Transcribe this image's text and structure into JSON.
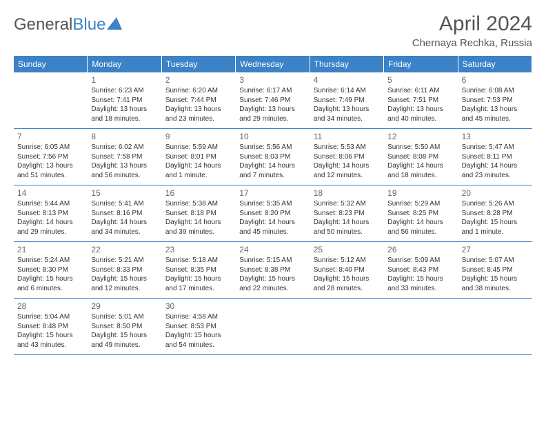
{
  "logo": {
    "text_gray": "General",
    "text_blue": "Blue"
  },
  "header": {
    "month_title": "April 2024",
    "location": "Chernaya Rechka, Russia"
  },
  "weekdays": [
    "Sunday",
    "Monday",
    "Tuesday",
    "Wednesday",
    "Thursday",
    "Friday",
    "Saturday"
  ],
  "colors": {
    "header_bg": "#3b82c7",
    "header_text": "#ffffff",
    "border": "#3b82c7",
    "text": "#333333",
    "title_text": "#555555"
  },
  "rows": [
    [
      {
        "blank": true
      },
      {
        "day": "1",
        "sunrise": "Sunrise: 6:23 AM",
        "sunset": "Sunset: 7:41 PM",
        "daylight": "Daylight: 13 hours and 18 minutes."
      },
      {
        "day": "2",
        "sunrise": "Sunrise: 6:20 AM",
        "sunset": "Sunset: 7:44 PM",
        "daylight": "Daylight: 13 hours and 23 minutes."
      },
      {
        "day": "3",
        "sunrise": "Sunrise: 6:17 AM",
        "sunset": "Sunset: 7:46 PM",
        "daylight": "Daylight: 13 hours and 29 minutes."
      },
      {
        "day": "4",
        "sunrise": "Sunrise: 6:14 AM",
        "sunset": "Sunset: 7:49 PM",
        "daylight": "Daylight: 13 hours and 34 minutes."
      },
      {
        "day": "5",
        "sunrise": "Sunrise: 6:11 AM",
        "sunset": "Sunset: 7:51 PM",
        "daylight": "Daylight: 13 hours and 40 minutes."
      },
      {
        "day": "6",
        "sunrise": "Sunrise: 6:08 AM",
        "sunset": "Sunset: 7:53 PM",
        "daylight": "Daylight: 13 hours and 45 minutes."
      }
    ],
    [
      {
        "day": "7",
        "sunrise": "Sunrise: 6:05 AM",
        "sunset": "Sunset: 7:56 PM",
        "daylight": "Daylight: 13 hours and 51 minutes."
      },
      {
        "day": "8",
        "sunrise": "Sunrise: 6:02 AM",
        "sunset": "Sunset: 7:58 PM",
        "daylight": "Daylight: 13 hours and 56 minutes."
      },
      {
        "day": "9",
        "sunrise": "Sunrise: 5:59 AM",
        "sunset": "Sunset: 8:01 PM",
        "daylight": "Daylight: 14 hours and 1 minute."
      },
      {
        "day": "10",
        "sunrise": "Sunrise: 5:56 AM",
        "sunset": "Sunset: 8:03 PM",
        "daylight": "Daylight: 14 hours and 7 minutes."
      },
      {
        "day": "11",
        "sunrise": "Sunrise: 5:53 AM",
        "sunset": "Sunset: 8:06 PM",
        "daylight": "Daylight: 14 hours and 12 minutes."
      },
      {
        "day": "12",
        "sunrise": "Sunrise: 5:50 AM",
        "sunset": "Sunset: 8:08 PM",
        "daylight": "Daylight: 14 hours and 18 minutes."
      },
      {
        "day": "13",
        "sunrise": "Sunrise: 5:47 AM",
        "sunset": "Sunset: 8:11 PM",
        "daylight": "Daylight: 14 hours and 23 minutes."
      }
    ],
    [
      {
        "day": "14",
        "sunrise": "Sunrise: 5:44 AM",
        "sunset": "Sunset: 8:13 PM",
        "daylight": "Daylight: 14 hours and 29 minutes."
      },
      {
        "day": "15",
        "sunrise": "Sunrise: 5:41 AM",
        "sunset": "Sunset: 8:16 PM",
        "daylight": "Daylight: 14 hours and 34 minutes."
      },
      {
        "day": "16",
        "sunrise": "Sunrise: 5:38 AM",
        "sunset": "Sunset: 8:18 PM",
        "daylight": "Daylight: 14 hours and 39 minutes."
      },
      {
        "day": "17",
        "sunrise": "Sunrise: 5:35 AM",
        "sunset": "Sunset: 8:20 PM",
        "daylight": "Daylight: 14 hours and 45 minutes."
      },
      {
        "day": "18",
        "sunrise": "Sunrise: 5:32 AM",
        "sunset": "Sunset: 8:23 PM",
        "daylight": "Daylight: 14 hours and 50 minutes."
      },
      {
        "day": "19",
        "sunrise": "Sunrise: 5:29 AM",
        "sunset": "Sunset: 8:25 PM",
        "daylight": "Daylight: 14 hours and 56 minutes."
      },
      {
        "day": "20",
        "sunrise": "Sunrise: 5:26 AM",
        "sunset": "Sunset: 8:28 PM",
        "daylight": "Daylight: 15 hours and 1 minute."
      }
    ],
    [
      {
        "day": "21",
        "sunrise": "Sunrise: 5:24 AM",
        "sunset": "Sunset: 8:30 PM",
        "daylight": "Daylight: 15 hours and 6 minutes."
      },
      {
        "day": "22",
        "sunrise": "Sunrise: 5:21 AM",
        "sunset": "Sunset: 8:33 PM",
        "daylight": "Daylight: 15 hours and 12 minutes."
      },
      {
        "day": "23",
        "sunrise": "Sunrise: 5:18 AM",
        "sunset": "Sunset: 8:35 PM",
        "daylight": "Daylight: 15 hours and 17 minutes."
      },
      {
        "day": "24",
        "sunrise": "Sunrise: 5:15 AM",
        "sunset": "Sunset: 8:38 PM",
        "daylight": "Daylight: 15 hours and 22 minutes."
      },
      {
        "day": "25",
        "sunrise": "Sunrise: 5:12 AM",
        "sunset": "Sunset: 8:40 PM",
        "daylight": "Daylight: 15 hours and 28 minutes."
      },
      {
        "day": "26",
        "sunrise": "Sunrise: 5:09 AM",
        "sunset": "Sunset: 8:43 PM",
        "daylight": "Daylight: 15 hours and 33 minutes."
      },
      {
        "day": "27",
        "sunrise": "Sunrise: 5:07 AM",
        "sunset": "Sunset: 8:45 PM",
        "daylight": "Daylight: 15 hours and 38 minutes."
      }
    ],
    [
      {
        "day": "28",
        "sunrise": "Sunrise: 5:04 AM",
        "sunset": "Sunset: 8:48 PM",
        "daylight": "Daylight: 15 hours and 43 minutes."
      },
      {
        "day": "29",
        "sunrise": "Sunrise: 5:01 AM",
        "sunset": "Sunset: 8:50 PM",
        "daylight": "Daylight: 15 hours and 49 minutes."
      },
      {
        "day": "30",
        "sunrise": "Sunrise: 4:58 AM",
        "sunset": "Sunset: 8:53 PM",
        "daylight": "Daylight: 15 hours and 54 minutes."
      },
      {
        "blank": true
      },
      {
        "blank": true
      },
      {
        "blank": true
      },
      {
        "blank": true
      }
    ]
  ]
}
